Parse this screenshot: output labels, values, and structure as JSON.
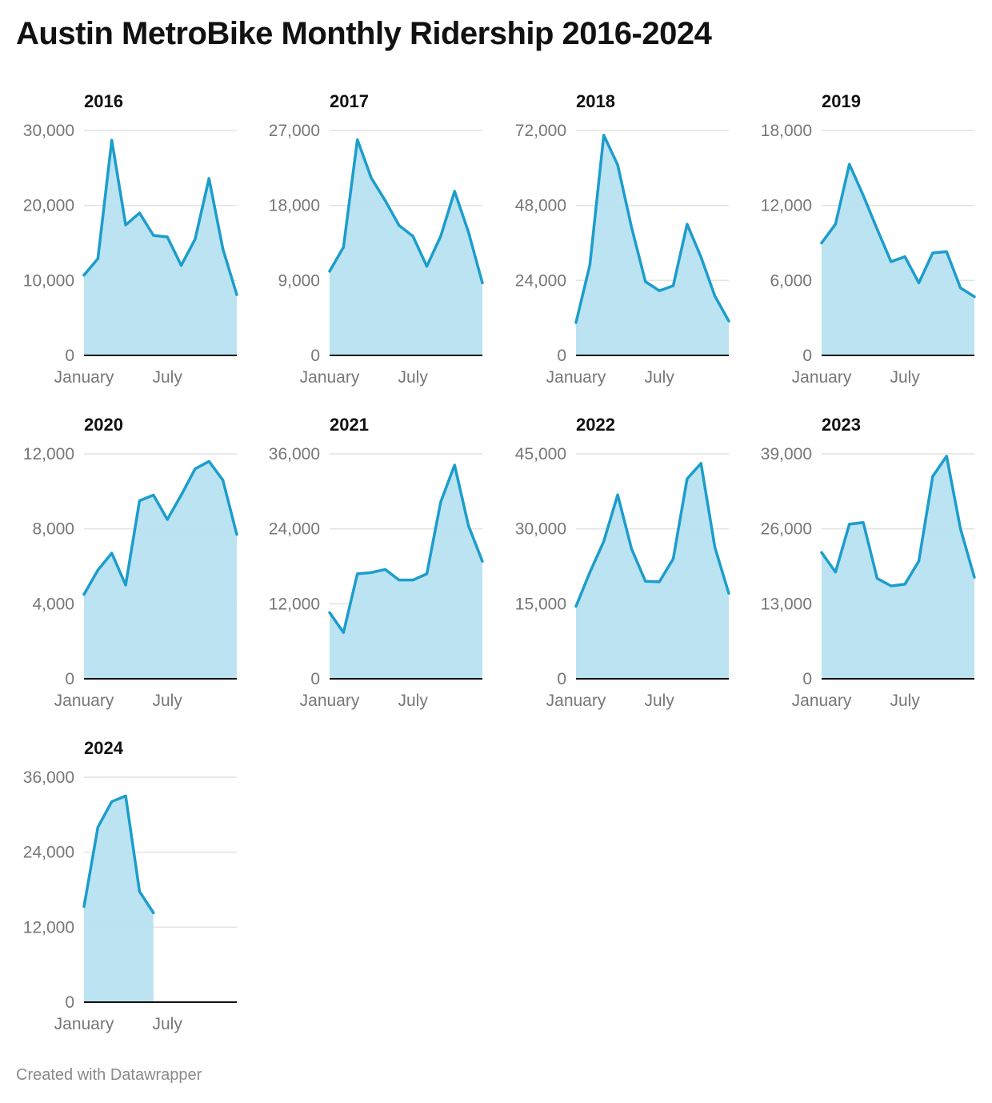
{
  "title": "Austin MetroBike Monthly Ridership 2016-2024",
  "footer": "Created with Datawrapper",
  "colors": {
    "line": "#1c9dcc",
    "area": "#b7e1f0",
    "grid": "#e2e2e2",
    "axis": "#111111",
    "tick": "#777777"
  },
  "chart_data": [
    {
      "type": "area",
      "title": "2016",
      "xticks": [
        "January",
        "July"
      ],
      "ylim": [
        0,
        30000
      ],
      "yticks": [
        "0",
        "10,000",
        "20,000",
        "30,000"
      ],
      "x": [
        "Jan",
        "Feb",
        "Mar",
        "Apr",
        "May",
        "Jun",
        "Jul",
        "Aug",
        "Sep",
        "Oct",
        "Nov",
        "Dec"
      ],
      "values": [
        10700,
        12900,
        28700,
        17400,
        19000,
        16000,
        15800,
        12000,
        15500,
        23600,
        14200,
        8100
      ]
    },
    {
      "type": "area",
      "title": "2017",
      "xticks": [
        "January",
        "July"
      ],
      "ylim": [
        0,
        27000
      ],
      "yticks": [
        "0",
        "9,000",
        "18,000",
        "27,000"
      ],
      "x": [
        "Jan",
        "Feb",
        "Mar",
        "Apr",
        "May",
        "Jun",
        "Jul",
        "Aug",
        "Sep",
        "Oct",
        "Nov",
        "Dec"
      ],
      "values": [
        10100,
        13000,
        25900,
        21300,
        18600,
        15600,
        14300,
        10700,
        14300,
        19700,
        14800,
        8700
      ]
    },
    {
      "type": "area",
      "title": "2018",
      "xticks": [
        "January",
        "July"
      ],
      "ylim": [
        0,
        72000
      ],
      "yticks": [
        "0",
        "24,000",
        "48,000",
        "72,000"
      ],
      "x": [
        "Jan",
        "Feb",
        "Mar",
        "Apr",
        "May",
        "Jun",
        "Jul",
        "Aug",
        "Sep",
        "Oct",
        "Nov",
        "Dec"
      ],
      "values": [
        10500,
        29000,
        70500,
        61000,
        41000,
        23600,
        20700,
        22300,
        42000,
        31500,
        19000,
        11000
      ]
    },
    {
      "type": "area",
      "title": "2019",
      "xticks": [
        "January",
        "July"
      ],
      "ylim": [
        0,
        18000
      ],
      "yticks": [
        "0",
        "6,000",
        "12,000",
        "18,000"
      ],
      "x": [
        "Jan",
        "Feb",
        "Mar",
        "Apr",
        "May",
        "Jun",
        "Jul",
        "Aug",
        "Sep",
        "Oct",
        "Nov",
        "Dec"
      ],
      "values": [
        9000,
        10500,
        15300,
        12800,
        10100,
        7500,
        7900,
        5800,
        8200,
        8300,
        5400,
        4700
      ]
    },
    {
      "type": "area",
      "title": "2020",
      "xticks": [
        "January",
        "July"
      ],
      "ylim": [
        0,
        12000
      ],
      "yticks": [
        "0",
        "4,000",
        "8,000",
        "12,000"
      ],
      "x": [
        "Jan",
        "Feb",
        "Mar",
        "Apr",
        "May",
        "Jun",
        "Jul",
        "Aug",
        "Sep",
        "Oct",
        "Nov",
        "Dec"
      ],
      "values": [
        4500,
        5800,
        6700,
        5000,
        9500,
        9800,
        8500,
        9800,
        11200,
        11600,
        10600,
        7700
      ]
    },
    {
      "type": "area",
      "title": "2021",
      "xticks": [
        "January",
        "July"
      ],
      "ylim": [
        0,
        36000
      ],
      "yticks": [
        "0",
        "12,000",
        "24,000",
        "36,000"
      ],
      "x": [
        "Jan",
        "Feb",
        "Mar",
        "Apr",
        "May",
        "Jun",
        "Jul",
        "Aug",
        "Sep",
        "Oct",
        "Nov",
        "Dec"
      ],
      "values": [
        10600,
        7400,
        16800,
        17000,
        17500,
        15800,
        15800,
        16800,
        28300,
        34200,
        24500,
        18800
      ]
    },
    {
      "type": "area",
      "title": "2022",
      "xticks": [
        "January",
        "July"
      ],
      "ylim": [
        0,
        45000
      ],
      "yticks": [
        "0",
        "15,000",
        "30,000",
        "45,000"
      ],
      "x": [
        "Jan",
        "Feb",
        "Mar",
        "Apr",
        "May",
        "Jun",
        "Jul",
        "Aug",
        "Sep",
        "Oct",
        "Nov",
        "Dec"
      ],
      "values": [
        14500,
        21300,
        27500,
        36800,
        26000,
        19500,
        19400,
        24000,
        40000,
        43100,
        26300,
        17100
      ]
    },
    {
      "type": "area",
      "title": "2023",
      "xticks": [
        "January",
        "July"
      ],
      "ylim": [
        0,
        39000
      ],
      "yticks": [
        "0",
        "13,000",
        "26,000",
        "39,000"
      ],
      "x": [
        "Jan",
        "Feb",
        "Mar",
        "Apr",
        "May",
        "Jun",
        "Jul",
        "Aug",
        "Sep",
        "Oct",
        "Nov",
        "Dec"
      ],
      "values": [
        21900,
        18500,
        26800,
        27100,
        17400,
        16100,
        16400,
        20400,
        35100,
        38600,
        26000,
        17600
      ]
    },
    {
      "type": "area",
      "title": "2024",
      "xticks": [
        "January",
        "July"
      ],
      "ylim": [
        0,
        36000
      ],
      "yticks": [
        "0",
        "12,000",
        "24,000",
        "36,000"
      ],
      "x": [
        "Jan",
        "Feb",
        "Mar",
        "Apr",
        "May",
        "Jun"
      ],
      "values": [
        15300,
        28000,
        32100,
        33000,
        17700,
        14300
      ]
    }
  ]
}
